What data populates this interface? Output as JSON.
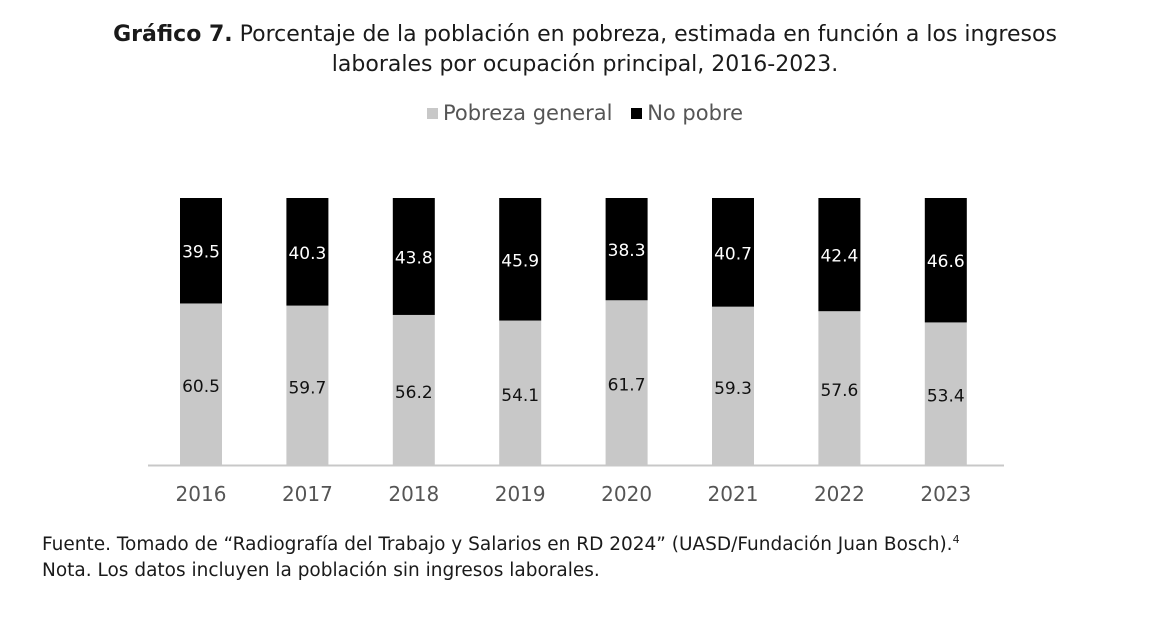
{
  "title": {
    "bold": "Gráfico 7.",
    "line1": " Porcentaje de la población en pobreza, estimada en función a los ingresos",
    "line2": "laborales por ocupación principal, 2016-2023."
  },
  "legend": [
    {
      "label": "Pobreza general",
      "color": "#c8c8c8"
    },
    {
      "label": "No pobre",
      "color": "#000000"
    }
  ],
  "chart_data": {
    "type": "bar",
    "stacked": true,
    "categories": [
      "2016",
      "2017",
      "2018",
      "2019",
      "2020",
      "2021",
      "2022",
      "2023"
    ],
    "series": [
      {
        "name": "Pobreza general",
        "color": "#c8c8c8",
        "values": [
          60.5,
          59.7,
          56.2,
          54.1,
          61.7,
          59.3,
          57.6,
          53.4
        ]
      },
      {
        "name": "No pobre",
        "color": "#000000",
        "values": [
          39.5,
          40.3,
          43.8,
          45.9,
          38.3,
          40.7,
          42.4,
          46.6
        ]
      }
    ],
    "ylim": [
      0,
      100
    ],
    "grid": false,
    "legend_position": "top-center"
  },
  "footer": {
    "source": "Fuente. Tomado de “Radiografía del Trabajo y Salarios en RD 2024” (UASD/Fundación Juan Bosch).",
    "source_sup": "4",
    "note": "Nota. Los datos incluyen la población sin ingresos laborales."
  }
}
